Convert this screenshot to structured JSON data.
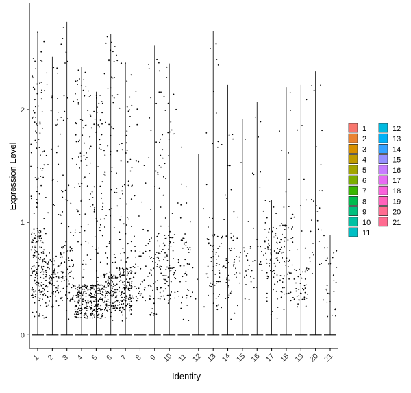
{
  "chart_data": {
    "type": "violin",
    "title": "",
    "xlabel": "Identity",
    "ylabel": "Expression Level",
    "ylim": [
      -0.12,
      2.95
    ],
    "y_ticks": [
      0,
      1,
      2
    ],
    "y_tick_labels": [
      "0",
      "1",
      "2"
    ],
    "categories": [
      "1",
      "2",
      "3",
      "4",
      "5",
      "6",
      "7",
      "8",
      "9",
      "10",
      "11",
      "12",
      "13",
      "14",
      "15",
      "16",
      "17",
      "18",
      "19",
      "20",
      "21"
    ],
    "legend": {
      "position": "right",
      "columns": 2,
      "entries": [
        {
          "label": "1",
          "color": "#F8766D"
        },
        {
          "label": "2",
          "color": "#EA8331"
        },
        {
          "label": "3",
          "color": "#D89000"
        },
        {
          "label": "4",
          "color": "#C09B00"
        },
        {
          "label": "5",
          "color": "#A3A500"
        },
        {
          "label": "6",
          "color": "#7CAE00"
        },
        {
          "label": "7",
          "color": "#39B600"
        },
        {
          "label": "8",
          "color": "#00BB4E"
        },
        {
          "label": "9",
          "color": "#00BF7D"
        },
        {
          "label": "10",
          "color": "#00C1A3"
        },
        {
          "label": "11",
          "color": "#00BFC4"
        },
        {
          "label": "12",
          "color": "#00BAE0"
        },
        {
          "label": "13",
          "color": "#00B0F6"
        },
        {
          "label": "14",
          "color": "#35A2FF"
        },
        {
          "label": "15",
          "color": "#9590FF"
        },
        {
          "label": "16",
          "color": "#C77CFF"
        },
        {
          "label": "17",
          "color": "#E76BF3"
        },
        {
          "label": "18",
          "color": "#FA62DB"
        },
        {
          "label": "19",
          "color": "#FF62BC"
        },
        {
          "label": "20",
          "color": "#FF6C91"
        },
        {
          "label": "21",
          "color": "#FF6C91"
        }
      ]
    },
    "max_values": [
      2.7,
      2.47,
      2.78,
      2.38,
      2.16,
      2.67,
      2.42,
      2.18,
      2.57,
      2.41,
      1.87,
      1.61,
      2.7,
      2.22,
      1.92,
      2.07,
      1.2,
      2.2,
      2.22,
      2.34,
      0.89
    ],
    "point_density": [
      10,
      5,
      5,
      9,
      9,
      8,
      9,
      2,
      4,
      4,
      2,
      0,
      3,
      2,
      1,
      1,
      3,
      3,
      2,
      1,
      1
    ],
    "dense_band": [
      [
        0.3,
        0.95
      ],
      [
        0.25,
        0.7
      ],
      [
        0.3,
        0.8
      ],
      [
        0.15,
        0.45
      ],
      [
        0.15,
        0.45
      ],
      [
        0.2,
        0.55
      ],
      [
        0.2,
        0.6
      ],
      [
        0.3,
        0.8
      ],
      [
        0.3,
        0.9
      ],
      [
        0.3,
        0.9
      ],
      [
        0.3,
        0.9
      ],
      [
        0.3,
        0.9
      ],
      [
        0.3,
        0.9
      ],
      [
        0.3,
        0.9
      ],
      [
        0.3,
        0.9
      ],
      [
        0.4,
        0.9
      ],
      [
        0.4,
        1.0
      ],
      [
        0.3,
        1.0
      ],
      [
        0.25,
        0.6
      ],
      [
        0.5,
        1.3
      ],
      [
        0.15,
        0.8
      ]
    ],
    "grid": false,
    "colors": {
      "dot": "#000000",
      "line": "#000000",
      "axis": "#000000",
      "text": "#333333"
    }
  }
}
